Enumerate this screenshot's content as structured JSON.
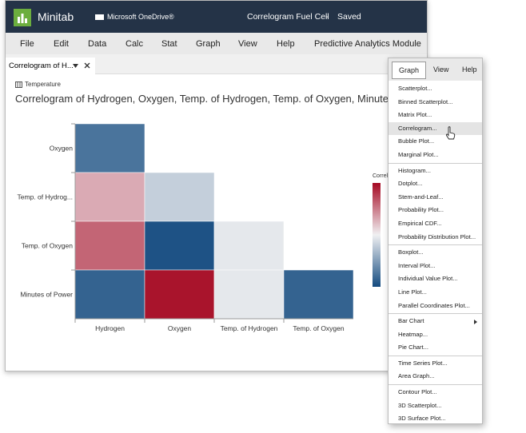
{
  "app": {
    "name": "Minitab",
    "location": "Microsoft OneDrive®",
    "file": "Correlogram Fuel Cell",
    "separator": "-",
    "status": "Saved"
  },
  "menu": [
    "File",
    "Edit",
    "Data",
    "Calc",
    "Stat",
    "Graph",
    "View",
    "Help",
    "Predictive Analytics Module"
  ],
  "tab": {
    "title": "Correlogram of H..."
  },
  "panel": {
    "label": "Temperature"
  },
  "chart_data": {
    "type": "heatmap",
    "title": "Correlogram of Hydrogen, Oxygen, Temp. of Hydrogen, Temp. of Oxygen, Minutes of P",
    "rows": [
      "Oxygen",
      "Temp. of Hydrog...",
      "Temp. of Oxygen",
      "Minutes of Power"
    ],
    "columns": [
      "Hydrogen",
      "Oxygen",
      "Temp. of Hydrogen",
      "Temp. of Oxygen"
    ],
    "values": [
      [
        -0.75,
        null,
        null,
        null
      ],
      [
        0.3,
        -0.2,
        null,
        null
      ],
      [
        0.6,
        -0.95,
        -0.05,
        null
      ],
      [
        -0.85,
        0.95,
        -0.05,
        -0.85
      ]
    ],
    "zlim": [
      -1,
      1
    ],
    "legend_title": "Correl"
  },
  "dropdown": {
    "tabs": [
      "Graph",
      "View",
      "Help"
    ],
    "groups": [
      [
        "Scatterplot...",
        "Binned Scatterplot...",
        "Matrix Plot...",
        "Correlogram...",
        "Bubble Plot...",
        "Marginal Plot..."
      ],
      [
        "Histogram...",
        "Dotplot...",
        "Stem-and-Leaf...",
        "Probability Plot...",
        "Empirical CDF...",
        "Probability Distribution Plot..."
      ],
      [
        "Boxplot...",
        "Interval Plot...",
        "Individual Value Plot...",
        "Line Plot...",
        "Parallel Coordinates Plot..."
      ],
      [
        "Bar Chart",
        "Heatmap...",
        "Pie Chart..."
      ],
      [
        "Time Series Plot...",
        "Area Graph..."
      ],
      [
        "Contour Plot...",
        "3D Scatterplot...",
        "3D Surface Plot..."
      ]
    ]
  }
}
